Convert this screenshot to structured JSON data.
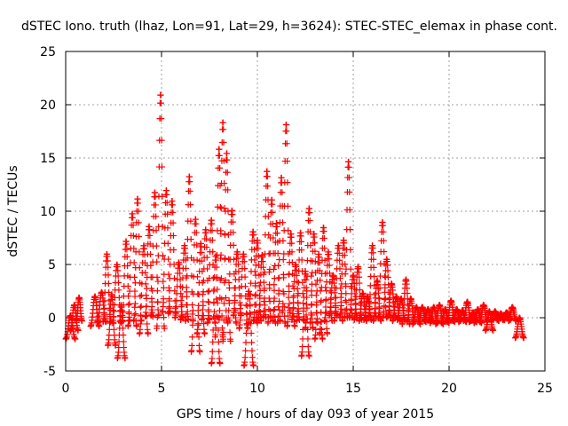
{
  "chart_data": {
    "type": "scatter",
    "title": "dSTEC Iono. truth (lhaz, Lon=91, Lat=29, h=3624): STEC-STEC_elemax in phase cont.",
    "xlabel": "GPS time / hours of day 093 of year 2015",
    "ylabel": "dSTEC  / TECUs",
    "xlim": [
      0,
      25
    ],
    "ylim": [
      -5,
      25
    ],
    "xticks": [
      "0",
      "5",
      "10",
      "15",
      "20",
      "25"
    ],
    "yticks": [
      "-5",
      "0",
      "5",
      "10",
      "15",
      "20",
      "25"
    ],
    "grid": true,
    "marker": "+",
    "marker_color": "#ff0000",
    "arcs": [
      {
        "t0": 0.0,
        "t1": 0.5,
        "min": -2.0,
        "max": 0.2
      },
      {
        "t0": 0.25,
        "t1": 0.65,
        "min": -1.2,
        "max": 1.2
      },
      {
        "t0": 0.55,
        "t1": 0.85,
        "min": -0.3,
        "max": 1.9
      },
      {
        "t0": 1.3,
        "t1": 1.75,
        "min": -0.8,
        "max": 2.0
      },
      {
        "t0": 1.65,
        "t1": 2.1,
        "min": -0.4,
        "max": 2.4
      },
      {
        "t0": 1.95,
        "t1": 2.35,
        "min": -0.4,
        "max": 6.0
      },
      {
        "t0": 2.2,
        "t1": 2.6,
        "min": -2.6,
        "max": 2.2
      },
      {
        "t0": 2.45,
        "t1": 2.9,
        "min": -0.5,
        "max": 5.0
      },
      {
        "t0": 2.7,
        "t1": 3.1,
        "min": -3.8,
        "max": 1.2
      },
      {
        "t0": 2.95,
        "t1": 3.35,
        "min": -0.3,
        "max": 7.2
      },
      {
        "t0": 3.25,
        "t1": 3.7,
        "min": -0.8,
        "max": 9.8
      },
      {
        "t0": 3.55,
        "t1": 3.95,
        "min": -0.3,
        "max": 11.2
      },
      {
        "t0": 3.85,
        "t1": 4.3,
        "min": -1.5,
        "max": 6.8
      },
      {
        "t0": 4.15,
        "t1": 4.55,
        "min": 0.1,
        "max": 8.6
      },
      {
        "t0": 4.45,
        "t1": 4.85,
        "min": 0.2,
        "max": 11.8
      },
      {
        "t0": 4.75,
        "t1": 5.15,
        "min": -1.0,
        "max": 21.0
      },
      {
        "t0": 5.05,
        "t1": 5.45,
        "min": 0.5,
        "max": 12.0
      },
      {
        "t0": 5.35,
        "t1": 5.75,
        "min": 0.4,
        "max": 11.0
      },
      {
        "t0": 5.7,
        "t1": 6.1,
        "min": 0.0,
        "max": 5.2
      },
      {
        "t0": 6.0,
        "t1": 6.4,
        "min": -0.2,
        "max": 6.8
      },
      {
        "t0": 6.25,
        "t1": 6.65,
        "min": -0.3,
        "max": 13.3
      },
      {
        "t0": 6.55,
        "t1": 7.0,
        "min": -3.2,
        "max": 9.3
      },
      {
        "t0": 6.85,
        "t1": 7.25,
        "min": -1.5,
        "max": 7.0
      },
      {
        "t0": 7.1,
        "t1": 7.5,
        "min": -0.2,
        "max": 8.3
      },
      {
        "t0": 7.4,
        "t1": 7.8,
        "min": -0.5,
        "max": 9.2
      },
      {
        "t0": 7.6,
        "t1": 8.05,
        "min": -4.3,
        "max": 5.8
      },
      {
        "t0": 7.8,
        "t1": 8.2,
        "min": -1.8,
        "max": 15.9
      },
      {
        "t0": 8.0,
        "t1": 8.4,
        "min": -0.2,
        "max": 18.4
      },
      {
        "t0": 8.2,
        "t1": 8.6,
        "min": -2.2,
        "max": 15.5
      },
      {
        "t0": 8.45,
        "t1": 8.9,
        "min": -0.5,
        "max": 10.1
      },
      {
        "t0": 8.75,
        "t1": 9.15,
        "min": 0.2,
        "max": 6.2
      },
      {
        "t0": 9.05,
        "t1": 9.5,
        "min": -1.0,
        "max": 6.0
      },
      {
        "t0": 9.3,
        "t1": 9.8,
        "min": -4.5,
        "max": 2.5
      },
      {
        "t0": 9.55,
        "t1": 10.0,
        "min": -0.5,
        "max": 8.1
      },
      {
        "t0": 9.8,
        "t1": 10.2,
        "min": -0.3,
        "max": 7.3
      },
      {
        "t0": 10.05,
        "t1": 10.45,
        "min": 0.0,
        "max": 5.9
      },
      {
        "t0": 10.3,
        "t1": 10.7,
        "min": 0.0,
        "max": 13.8
      },
      {
        "t0": 10.55,
        "t1": 10.95,
        "min": -0.5,
        "max": 11.1
      },
      {
        "t0": 10.8,
        "t1": 11.2,
        "min": -0.3,
        "max": 8.9
      },
      {
        "t0": 11.05,
        "t1": 11.45,
        "min": -0.5,
        "max": 13.2
      },
      {
        "t0": 11.3,
        "t1": 11.7,
        "min": 0.5,
        "max": 18.2
      },
      {
        "t0": 11.55,
        "t1": 11.95,
        "min": -0.8,
        "max": 7.9
      },
      {
        "t0": 11.8,
        "t1": 12.2,
        "min": -0.2,
        "max": 5.0
      },
      {
        "t0": 12.05,
        "t1": 12.45,
        "min": -0.3,
        "max": 8.0
      },
      {
        "t0": 12.3,
        "t1": 12.7,
        "min": -3.6,
        "max": 4.4
      },
      {
        "t0": 12.5,
        "t1": 12.9,
        "min": -1.0,
        "max": 10.3
      },
      {
        "t0": 12.75,
        "t1": 13.15,
        "min": -0.5,
        "max": 7.9
      },
      {
        "t0": 13.0,
        "t1": 13.4,
        "min": -2.0,
        "max": 6.0
      },
      {
        "t0": 13.25,
        "t1": 13.65,
        "min": -1.5,
        "max": 8.5
      },
      {
        "t0": 13.5,
        "t1": 13.9,
        "min": -0.3,
        "max": 6.2
      },
      {
        "t0": 13.75,
        "t1": 14.15,
        "min": 0.2,
        "max": 4.0
      },
      {
        "t0": 14.0,
        "t1": 14.45,
        "min": -0.3,
        "max": 6.8
      },
      {
        "t0": 14.3,
        "t1": 14.7,
        "min": 0.0,
        "max": 7.3
      },
      {
        "t0": 14.55,
        "t1": 14.95,
        "min": 0.0,
        "max": 14.7
      },
      {
        "t0": 14.8,
        "t1": 15.2,
        "min": 0.0,
        "max": 4.0
      },
      {
        "t0": 15.05,
        "t1": 15.45,
        "min": -0.2,
        "max": 4.8
      },
      {
        "t0": 15.3,
        "t1": 15.7,
        "min": -0.3,
        "max": 2.3
      },
      {
        "t0": 15.55,
        "t1": 15.95,
        "min": -0.2,
        "max": 2.0
      },
      {
        "t0": 15.8,
        "t1": 16.2,
        "min": 0.1,
        "max": 6.8
      },
      {
        "t0": 16.05,
        "t1": 16.45,
        "min": -0.3,
        "max": 3.5
      },
      {
        "t0": 16.3,
        "t1": 16.75,
        "min": 0.0,
        "max": 9.0
      },
      {
        "t0": 16.55,
        "t1": 16.95,
        "min": 0.0,
        "max": 5.5
      },
      {
        "t0": 16.8,
        "t1": 17.2,
        "min": 0.1,
        "max": 3.2
      },
      {
        "t0": 17.05,
        "t1": 17.45,
        "min": -0.3,
        "max": 2.0
      },
      {
        "t0": 17.3,
        "t1": 17.7,
        "min": -0.2,
        "max": 1.8
      },
      {
        "t0": 17.55,
        "t1": 17.95,
        "min": -0.6,
        "max": 3.6
      },
      {
        "t0": 17.8,
        "t1": 18.2,
        "min": -0.4,
        "max": 1.8
      },
      {
        "t0": 18.1,
        "t1": 18.5,
        "min": -0.6,
        "max": 1.0
      },
      {
        "t0": 18.4,
        "t1": 18.8,
        "min": -0.4,
        "max": 1.0
      },
      {
        "t0": 18.7,
        "t1": 19.1,
        "min": -0.3,
        "max": 0.8
      },
      {
        "t0": 19.0,
        "t1": 19.4,
        "min": -0.5,
        "max": 1.0
      },
      {
        "t0": 19.3,
        "t1": 19.7,
        "min": -0.6,
        "max": 1.2
      },
      {
        "t0": 19.6,
        "t1": 20.0,
        "min": -0.5,
        "max": 0.8
      },
      {
        "t0": 19.9,
        "t1": 20.3,
        "min": -0.4,
        "max": 1.6
      },
      {
        "t0": 20.2,
        "t1": 20.6,
        "min": -0.3,
        "max": 0.8
      },
      {
        "t0": 20.5,
        "t1": 20.9,
        "min": -0.4,
        "max": 0.7
      },
      {
        "t0": 20.75,
        "t1": 21.15,
        "min": -0.3,
        "max": 1.5
      },
      {
        "t0": 21.05,
        "t1": 21.45,
        "min": -0.4,
        "max": 0.5
      },
      {
        "t0": 21.3,
        "t1": 21.7,
        "min": -0.5,
        "max": 0.8
      },
      {
        "t0": 21.6,
        "t1": 22.0,
        "min": -0.4,
        "max": 1.2
      },
      {
        "t0": 21.9,
        "t1": 22.3,
        "min": -1.2,
        "max": 0.6
      },
      {
        "t0": 22.2,
        "t1": 22.6,
        "min": -0.3,
        "max": 0.6
      },
      {
        "t0": 22.5,
        "t1": 22.9,
        "min": -0.2,
        "max": 0.4
      },
      {
        "t0": 22.8,
        "t1": 23.2,
        "min": -0.2,
        "max": 0.5
      },
      {
        "t0": 23.1,
        "t1": 23.5,
        "min": -0.3,
        "max": 1.0
      },
      {
        "t0": 23.45,
        "t1": 23.9,
        "min": -1.9,
        "max": 0.0
      }
    ]
  }
}
